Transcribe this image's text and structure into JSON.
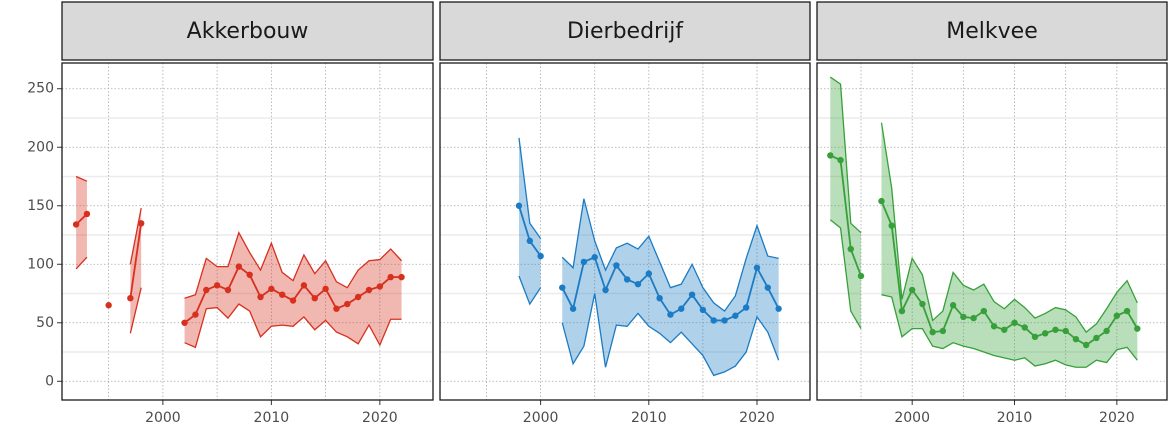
{
  "chart_data": [
    {
      "type": "line",
      "title": "Akkerbouw",
      "color": "#d7301f",
      "x": [
        1992,
        1993,
        1994,
        1995,
        1996,
        1997,
        1998,
        1999,
        2000,
        2001,
        2002,
        2003,
        2004,
        2005,
        2006,
        2007,
        2008,
        2009,
        2010,
        2011,
        2012,
        2013,
        2014,
        2015,
        2016,
        2017,
        2018,
        2019,
        2020,
        2021,
        2022
      ],
      "values": [
        134,
        143,
        null,
        65,
        null,
        71,
        135,
        null,
        null,
        null,
        50,
        57,
        78,
        82,
        78,
        98,
        91,
        72,
        79,
        74,
        69,
        82,
        71,
        79,
        62,
        66,
        72,
        78,
        81,
        89,
        89
      ],
      "lower": [
        96,
        106,
        null,
        null,
        null,
        41,
        80,
        null,
        null,
        null,
        33,
        29,
        62,
        63,
        54,
        66,
        60,
        38,
        47,
        48,
        47,
        55,
        44,
        52,
        42,
        38,
        32,
        48,
        31,
        53,
        53
      ],
      "upper": [
        175,
        171,
        null,
        null,
        null,
        100,
        148,
        null,
        null,
        null,
        71,
        74,
        105,
        98,
        98,
        127,
        110,
        95,
        118,
        93,
        86,
        108,
        92,
        103,
        85,
        80,
        95,
        103,
        104,
        113,
        103
      ],
      "xlim": [
        1990.7,
        2024.9
      ],
      "xticks": [
        2000,
        2010,
        2020
      ],
      "xminor": [
        1995,
        2005,
        2015
      ],
      "ylim": [
        -16,
        272
      ],
      "yticks": [
        0,
        50,
        100,
        150,
        200,
        250
      ],
      "yminor": [
        25,
        75,
        125,
        175,
        225
      ]
    },
    {
      "type": "line",
      "title": "Dierbedrijf",
      "color": "#1b7bc4",
      "x": [
        1992,
        1993,
        1994,
        1995,
        1996,
        1997,
        1998,
        1999,
        2000,
        2001,
        2002,
        2003,
        2004,
        2005,
        2006,
        2007,
        2008,
        2009,
        2010,
        2011,
        2012,
        2013,
        2014,
        2015,
        2016,
        2017,
        2018,
        2019,
        2020,
        2021,
        2022
      ],
      "values": [
        null,
        null,
        null,
        null,
        null,
        null,
        150,
        120,
        107,
        null,
        80,
        62,
        102,
        106,
        78,
        99,
        87,
        83,
        92,
        71,
        57,
        62,
        74,
        61,
        52,
        52,
        56,
        63,
        97,
        80,
        62
      ],
      "lower": [
        null,
        null,
        null,
        null,
        null,
        null,
        90,
        66,
        80,
        null,
        50,
        15,
        30,
        75,
        12,
        48,
        47,
        58,
        47,
        41,
        33,
        42,
        32,
        22,
        5,
        8,
        13,
        25,
        55,
        42,
        18
      ],
      "upper": [
        null,
        null,
        null,
        null,
        null,
        null,
        208,
        135,
        122,
        null,
        106,
        97,
        156,
        120,
        95,
        114,
        118,
        113,
        124,
        102,
        80,
        83,
        100,
        80,
        67,
        60,
        73,
        105,
        133,
        107,
        105
      ],
      "xlim": [
        1990.7,
        2024.9
      ],
      "xticks": [
        2000,
        2010,
        2020
      ],
      "xminor": [
        1995,
        2005,
        2015
      ],
      "ylim": [
        -16,
        272
      ],
      "yticks": [
        0,
        50,
        100,
        150,
        200,
        250
      ],
      "yminor": [
        25,
        75,
        125,
        175,
        225
      ]
    },
    {
      "type": "line",
      "title": "Melkvee",
      "color": "#37a03a",
      "x": [
        1992,
        1993,
        1994,
        1995,
        1996,
        1997,
        1998,
        1999,
        2000,
        2001,
        2002,
        2003,
        2004,
        2005,
        2006,
        2007,
        2008,
        2009,
        2010,
        2011,
        2012,
        2013,
        2014,
        2015,
        2016,
        2017,
        2018,
        2019,
        2020,
        2021,
        2022
      ],
      "values": [
        193,
        189,
        113,
        90,
        null,
        154,
        133,
        60,
        78,
        66,
        42,
        43,
        65,
        55,
        54,
        60,
        47,
        44,
        50,
        46,
        38,
        41,
        44,
        43,
        36,
        31,
        37,
        43,
        56,
        60,
        45
      ],
      "lower": [
        138,
        131,
        60,
        45,
        null,
        74,
        72,
        38,
        45,
        45,
        30,
        28,
        33,
        30,
        28,
        25,
        22,
        20,
        18,
        20,
        13,
        15,
        18,
        14,
        12,
        12,
        18,
        16,
        27,
        29,
        18
      ],
      "upper": [
        260,
        254,
        135,
        127,
        null,
        221,
        165,
        70,
        105,
        91,
        52,
        60,
        93,
        82,
        78,
        83,
        68,
        62,
        70,
        63,
        54,
        58,
        63,
        61,
        55,
        42,
        49,
        62,
        76,
        86,
        67
      ],
      "xlim": [
        1990.7,
        2024.9
      ],
      "xticks": [
        2000,
        2010,
        2020
      ],
      "xminor": [
        1995,
        2005,
        2015
      ],
      "ylim": [
        -16,
        272
      ],
      "yticks": [
        0,
        50,
        100,
        150,
        200,
        250
      ],
      "yminor": [
        25,
        75,
        125,
        175,
        225
      ]
    }
  ]
}
